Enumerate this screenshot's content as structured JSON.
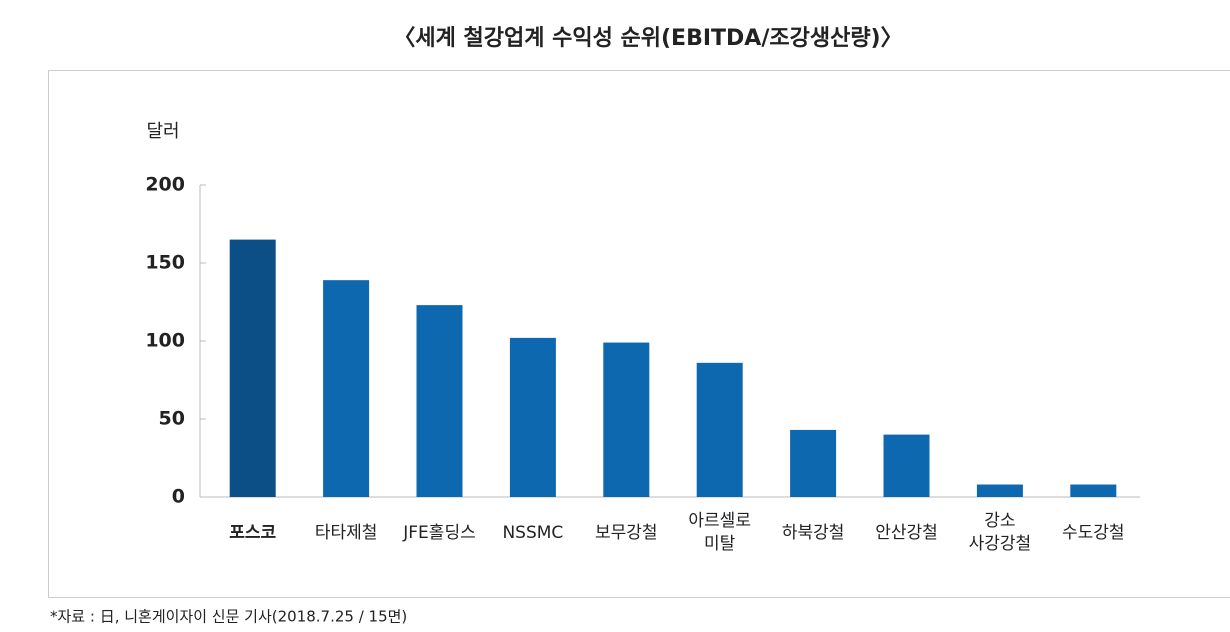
{
  "chart_data": {
    "type": "bar",
    "title": "〈세계 철강업계 수익성 순위(EBITDA/조강생산량)〉",
    "y_label": "달러",
    "categories": [
      "포스코",
      "타타제철",
      "JFE홀딩스",
      "NSSMC",
      "보무강철",
      "아르셀로\n미탈",
      "하북강철",
      "안산강철",
      "강소\n사강강철",
      "수도강철"
    ],
    "values": [
      165,
      139,
      123,
      102,
      99,
      86,
      43,
      40,
      8,
      8
    ],
    "colors": [
      "#0b4f86",
      "#0d68b0",
      "#0d68b0",
      "#0d68b0",
      "#0d68b0",
      "#0d68b0",
      "#0d68b0",
      "#0d68b0",
      "#0d68b0",
      "#0d68b0"
    ],
    "ylim": [
      0,
      200
    ],
    "yticks": [
      0,
      50,
      100,
      150,
      200
    ],
    "source": "*자료 : 日, 니혼게이자이 신문 기사(2018.7.25 / 15면)"
  }
}
